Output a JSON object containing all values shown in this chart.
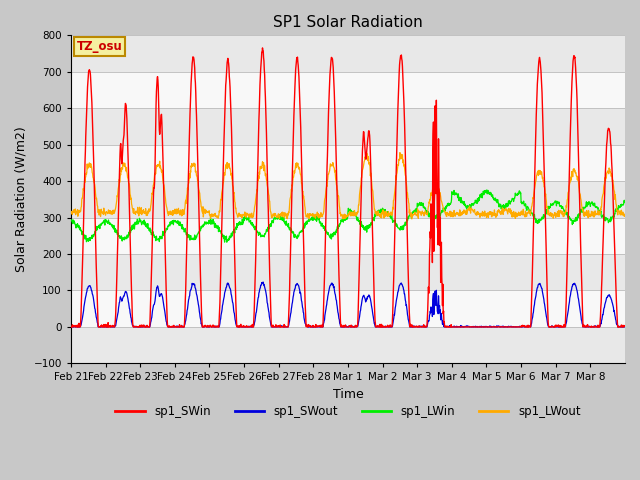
{
  "title": "SP1 Solar Radiation",
  "ylabel": "Solar Radiation (W/m2)",
  "xlabel": "Time",
  "ylim": [
    -100,
    800
  ],
  "tz_label": "TZ_osu",
  "legend_labels": [
    "sp1_SWin",
    "sp1_SWout",
    "sp1_LWin",
    "sp1_LWout"
  ],
  "line_colors": {
    "sp1_SWin": "#ff0000",
    "sp1_SWout": "#0000dd",
    "sp1_LWin": "#00ee00",
    "sp1_LWout": "#ffaa00"
  },
  "x_tick_labels": [
    "Feb 21",
    "Feb 22",
    "Feb 23",
    "Feb 24",
    "Feb 25",
    "Feb 26",
    "Feb 27",
    "Feb 28",
    "Mar 1",
    "Mar 2",
    "Mar 3",
    "Mar 4",
    "Mar 5",
    "Mar 6",
    "Mar 7",
    "Mar 8"
  ],
  "n_days": 16,
  "dt_hours": 0.25,
  "fig_width": 6.4,
  "fig_height": 4.8,
  "dpi": 100
}
